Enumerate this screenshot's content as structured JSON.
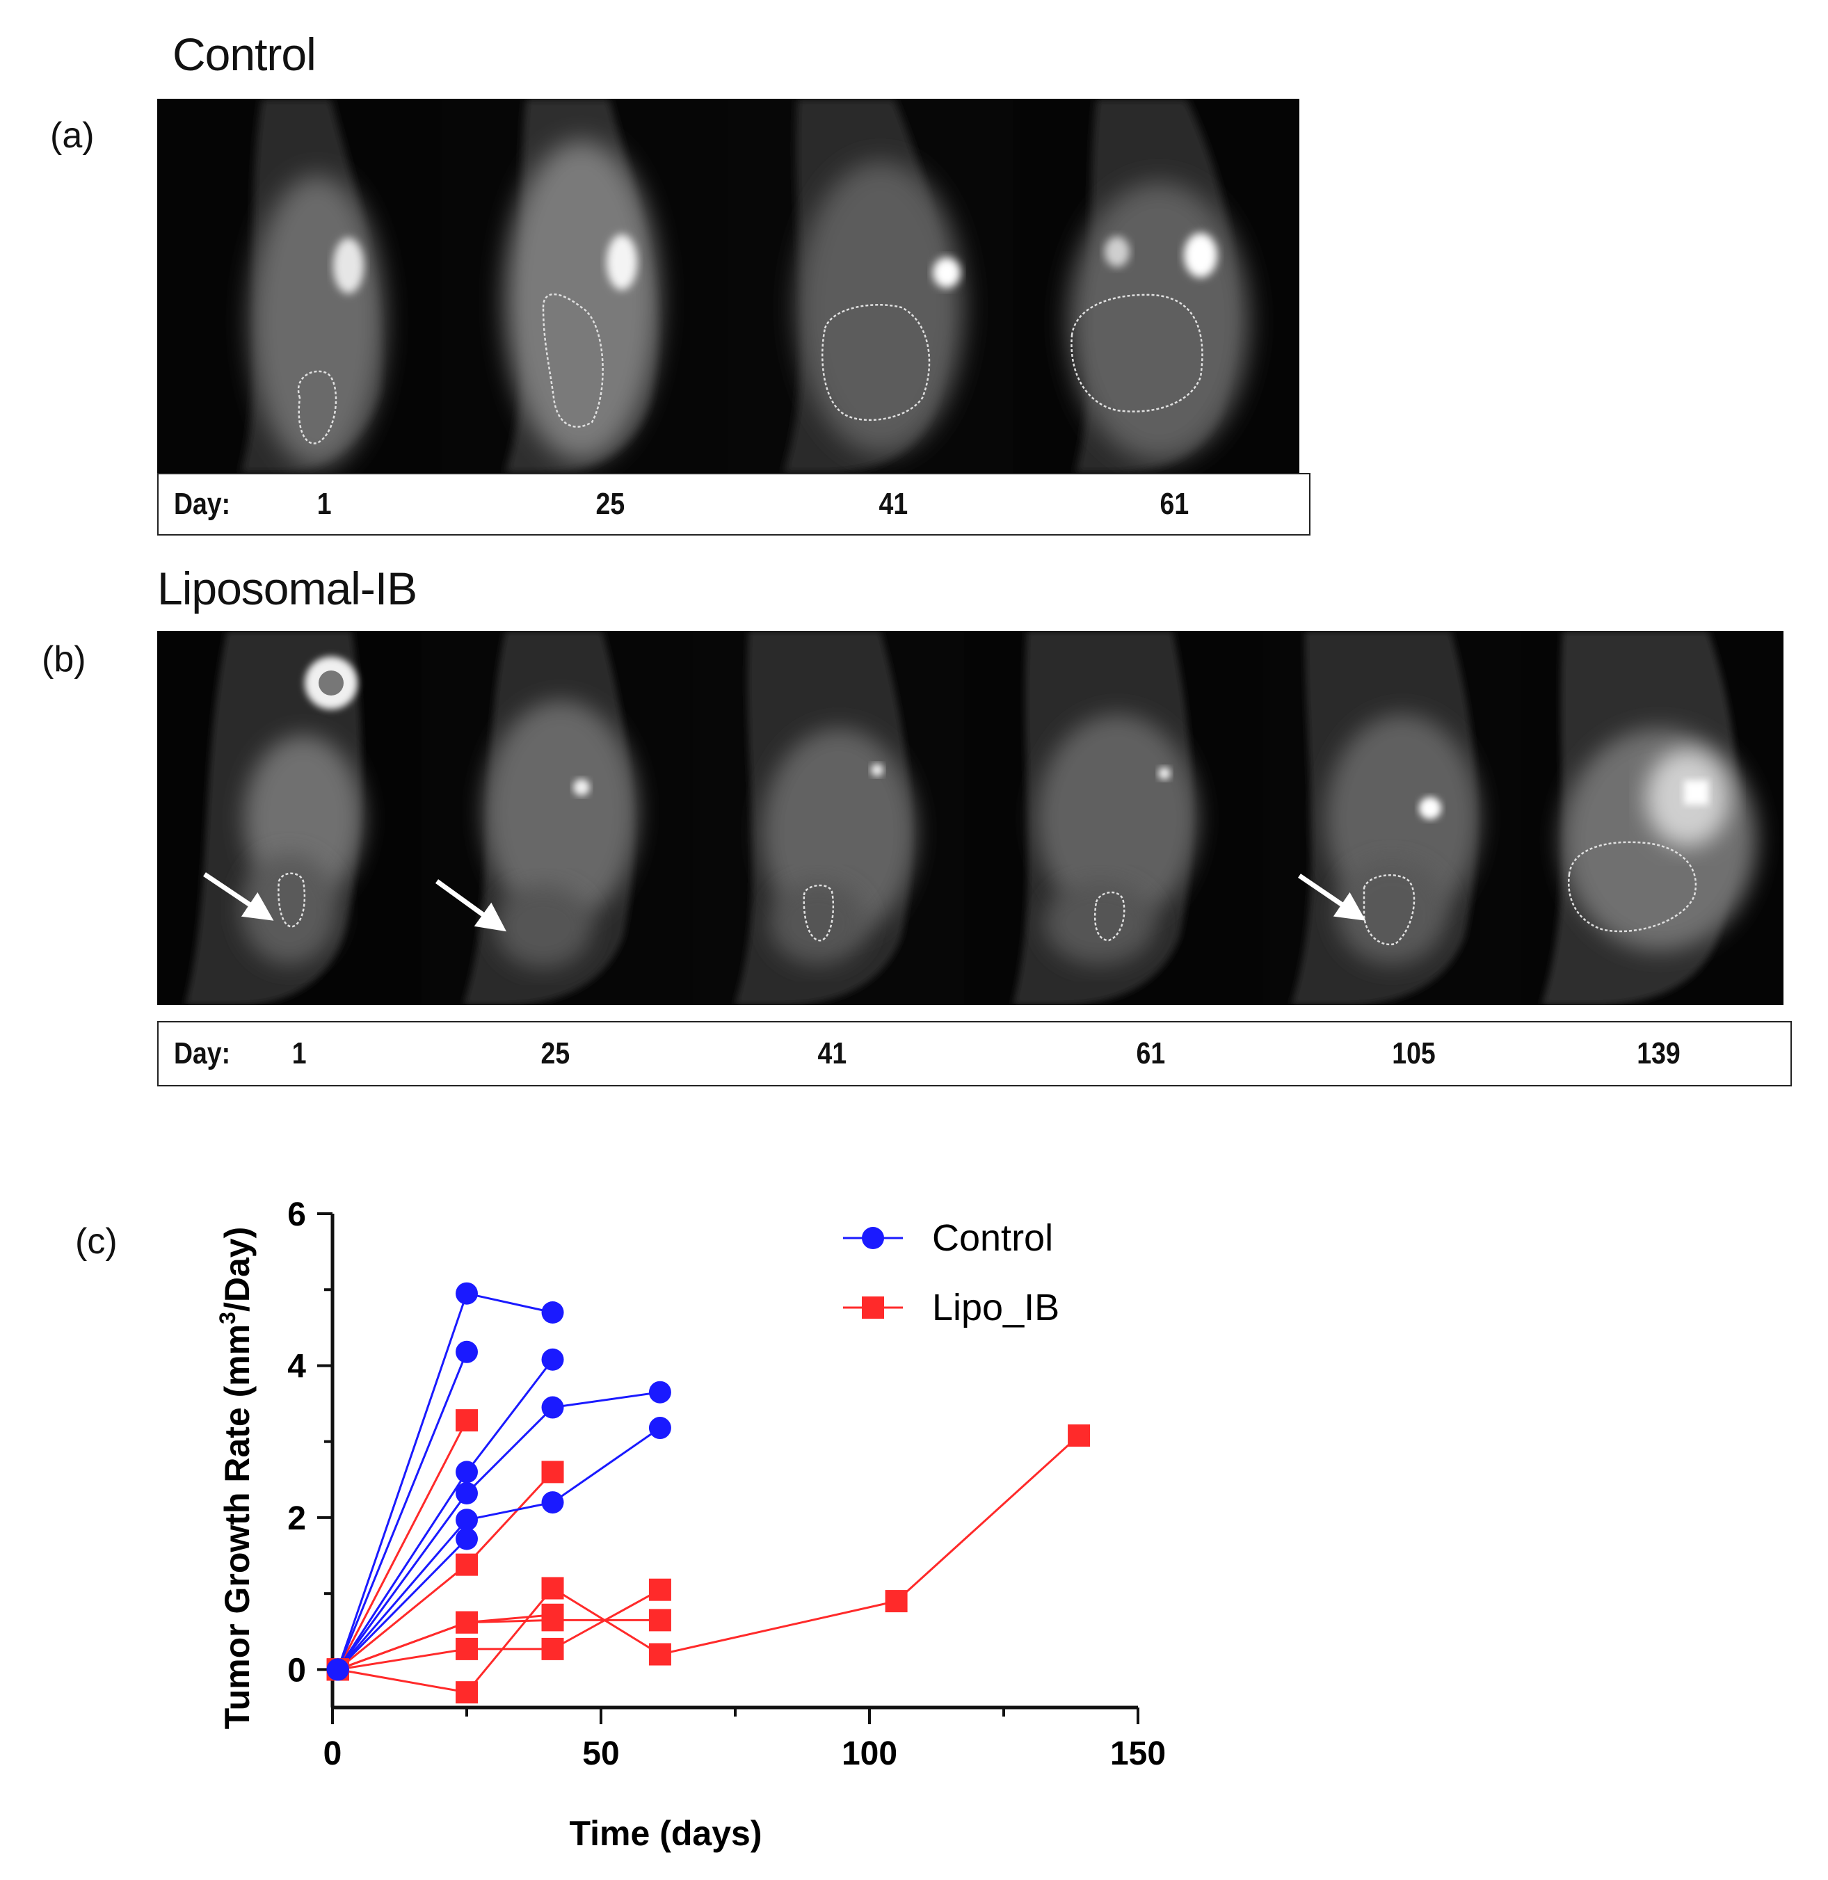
{
  "panel_a": {
    "label": "(a)",
    "title": "Control",
    "day_label": "Day:",
    "days": [
      "1",
      "25",
      "41",
      "61"
    ]
  },
  "panel_b": {
    "label": "(b)",
    "title": "Liposomal-IB",
    "day_label": "Day:",
    "days": [
      "1",
      "25",
      "41",
      "61",
      "105",
      "139"
    ]
  },
  "panel_c": {
    "label": "(c)"
  },
  "colors": {
    "control": "#1a1aff",
    "lipo": "#ff2a2a",
    "axis": "#111111"
  },
  "chart_data": {
    "type": "line",
    "title": "",
    "xlabel": "Time (days)",
    "ylabel": "Tumor Growth Rate (mm³/Day)",
    "ylabel_parts": {
      "pre": "Tumor Growth Rate (mm",
      "sup": "3",
      "post": "/Day)"
    },
    "xlim": [
      0,
      150
    ],
    "ylim": [
      -0.5,
      6
    ],
    "xticks": [
      0,
      50,
      100,
      150
    ],
    "yticks": [
      0,
      2,
      4,
      6
    ],
    "legend_position": "top-right",
    "series": [
      {
        "name": "Control",
        "group": "control",
        "marker": "circle",
        "x": [
          1,
          25,
          41
        ],
        "y": [
          0,
          4.95,
          4.7
        ]
      },
      {
        "name": "Control",
        "group": "control",
        "marker": "circle",
        "x": [
          1,
          25,
          41
        ],
        "y": [
          0,
          2.6,
          4.08
        ]
      },
      {
        "name": "Control",
        "group": "control",
        "marker": "circle",
        "x": [
          1,
          25,
          41,
          61
        ],
        "y": [
          0,
          2.32,
          3.45,
          3.65
        ]
      },
      {
        "name": "Control",
        "group": "control",
        "marker": "circle",
        "x": [
          1,
          25,
          41,
          61
        ],
        "y": [
          0,
          1.97,
          2.2,
          3.18
        ]
      },
      {
        "name": "Control",
        "group": "control",
        "marker": "circle",
        "x": [
          1,
          25
        ],
        "y": [
          0,
          4.18
        ]
      },
      {
        "name": "Control",
        "group": "control",
        "marker": "circle",
        "x": [
          1,
          25
        ],
        "y": [
          0,
          1.72
        ]
      },
      {
        "name": "Lipo_IB",
        "group": "lipo",
        "marker": "square",
        "x": [
          1,
          25
        ],
        "y": [
          0,
          3.28
        ]
      },
      {
        "name": "Lipo_IB",
        "group": "lipo",
        "marker": "square",
        "x": [
          1,
          25,
          41
        ],
        "y": [
          0,
          1.38,
          2.6
        ]
      },
      {
        "name": "Lipo_IB",
        "group": "lipo",
        "marker": "square",
        "x": [
          1,
          25,
          41,
          61
        ],
        "y": [
          0,
          0.62,
          0.65,
          0.65
        ]
      },
      {
        "name": "Lipo_IB",
        "group": "lipo",
        "marker": "square",
        "x": [
          1,
          25,
          41,
          61
        ],
        "y": [
          0,
          0.27,
          0.27,
          1.05
        ]
      },
      {
        "name": "Lipo_IB",
        "group": "lipo",
        "marker": "square",
        "x": [
          1,
          25,
          41,
          61,
          105,
          139
        ],
        "y": [
          0,
          -0.3,
          1.07,
          0.2,
          0.9,
          3.08
        ]
      },
      {
        "name": "Lipo_IB",
        "group": "lipo",
        "marker": "square",
        "x": [
          1,
          25,
          41
        ],
        "y": [
          0,
          0.62,
          0.72
        ]
      }
    ]
  }
}
